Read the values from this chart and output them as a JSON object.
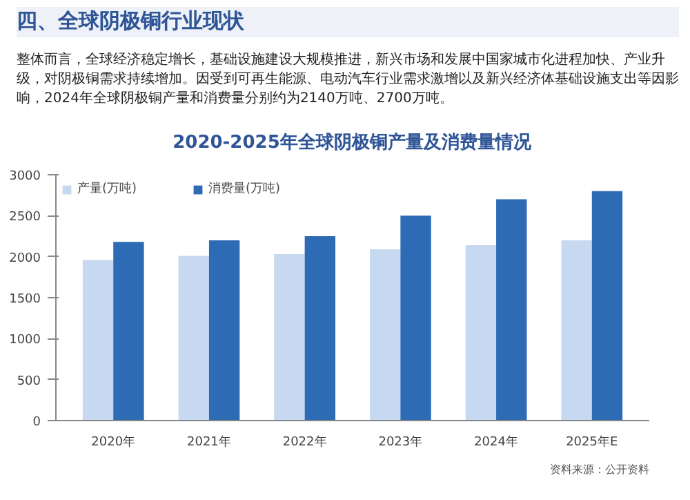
{
  "chart_data": {
    "type": "bar",
    "title": "2020-2025年全球阴极铜产量及消费量情况",
    "annotations": [
      "四、全球阴极铜行业现状",
      "整体而言，全球经济稳定增长，基础设施建设大规模推进，新兴市场和发展中国家城市化进程加快、产业升级，对阴极铜需求持续增加。因受到可再生能源、电动汽车行业需求激增以及新兴经济体基础设施支出等因影响，2024年全球阴极铜产量和消费量分别约为2140万吨、2700万吨。",
      "资料来源：公开资料"
    ],
    "categories": [
      "2020年",
      "2021年",
      "2022年",
      "2023年",
      "2024年",
      "2025年E"
    ],
    "series": [
      {
        "name": "产量(万吨)",
        "color": "#c6d9f0",
        "values": [
          1960,
          2010,
          2030,
          2090,
          2140,
          2200
        ]
      },
      {
        "name": "消费量(万吨)",
        "color": "#2e6bb5",
        "values": [
          2180,
          2200,
          2250,
          2500,
          2700,
          2800
        ]
      }
    ],
    "ylim": [
      0,
      3000
    ],
    "yticks": [
      0,
      500,
      1000,
      1500,
      2000,
      2500,
      3000
    ],
    "legend": "top"
  }
}
